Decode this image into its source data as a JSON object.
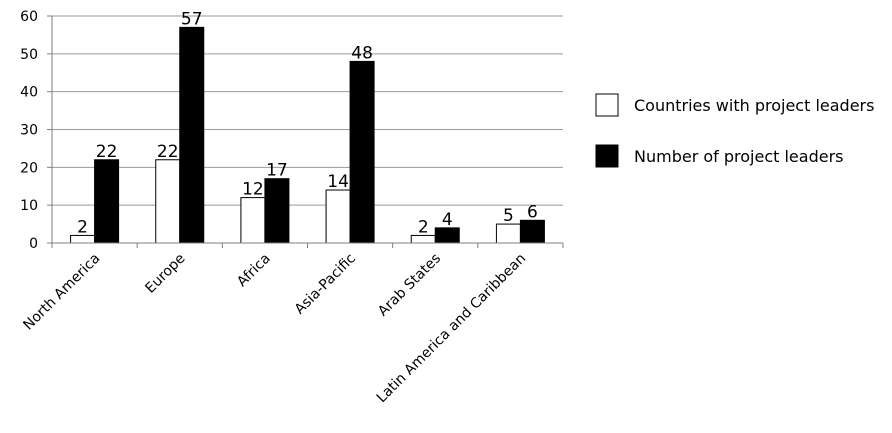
{
  "chart_data": {
    "type": "bar",
    "title": "",
    "xlabel": "",
    "ylabel": "",
    "categories": [
      "North America",
      "Europe",
      "Africa",
      "Asia-Pacific",
      "Arab States",
      "Latin America and Caribbean"
    ],
    "series": [
      {
        "name": "Countries with project leaders",
        "values": [
          2,
          22,
          12,
          14,
          2,
          5
        ],
        "color": "#ffffff"
      },
      {
        "name": "Number of project leaders",
        "values": [
          22,
          57,
          17,
          48,
          4,
          6
        ],
        "color": "#000000"
      }
    ],
    "ylim": [
      0,
      60
    ],
    "yticks": [
      0,
      10,
      20,
      30,
      40,
      50,
      60
    ],
    "grid": true,
    "data_labels": true,
    "legend_position": "right"
  }
}
